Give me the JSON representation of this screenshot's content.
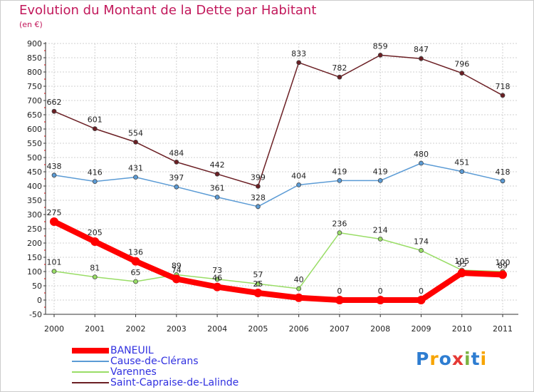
{
  "header": {
    "title": "Evolution du Montant de la Dette par Habitant",
    "unit": "(en €)"
  },
  "colors": {
    "title": "#c2185b",
    "legend_text": "#3030e0",
    "grid": "#d0d0d0",
    "axis": "#333333"
  },
  "chart_data": {
    "type": "line",
    "title": "Evolution du Montant de la Dette par Habitant",
    "subtitle": "(en €)",
    "x": [
      "2000",
      "2001",
      "2002",
      "2003",
      "2004",
      "2005",
      "2006",
      "2007",
      "2008",
      "2009",
      "2010",
      "2011"
    ],
    "ylim": [
      -50,
      900
    ],
    "yticks": [
      -50,
      0,
      50,
      100,
      150,
      200,
      250,
      300,
      350,
      400,
      450,
      500,
      550,
      600,
      650,
      700,
      750,
      800,
      850,
      900
    ],
    "grid": true,
    "legend_position": "bottom-left",
    "series": [
      {
        "name": "Saint-Capraise-de-Lalinde",
        "color": "#6b1f24",
        "values": [
          662,
          601,
          554,
          484,
          442,
          399,
          833,
          782,
          859,
          847,
          796,
          718
        ],
        "labels": [
          "662",
          "601",
          "554",
          "484",
          "442",
          "399",
          "833",
          "782",
          "859",
          "847",
          "796",
          "718"
        ]
      },
      {
        "name": "Cause-de-Clérans",
        "color": "#5b9bd5",
        "values": [
          438,
          416,
          431,
          397,
          361,
          328,
          404,
          419,
          419,
          480,
          451,
          418
        ],
        "labels": [
          "438",
          "416",
          "431",
          "397",
          "361",
          "328",
          "404",
          "419",
          "419",
          "480",
          "451",
          "418"
        ]
      },
      {
        "name": "Varennes",
        "color": "#99dd66",
        "values": [
          101,
          81,
          65,
          89,
          73,
          57,
          40,
          236,
          214,
          174,
          105,
          100
        ],
        "labels": [
          "101",
          "81",
          "65",
          "89",
          "73",
          "57",
          "40",
          "236",
          "214",
          "174",
          "105",
          "100"
        ]
      },
      {
        "name": "BANEUIL",
        "color": "#ff0000",
        "values": [
          275,
          205,
          136,
          74,
          46,
          25,
          8,
          0,
          0,
          0,
          95,
          89
        ],
        "labels": [
          "275",
          "205",
          "136",
          "74",
          "46",
          "25",
          "",
          "0",
          "0",
          "0",
          "95",
          "89"
        ]
      }
    ]
  },
  "legend": {
    "items": [
      {
        "name": "BANEUIL",
        "color": "#ff0000",
        "stroke": 8
      },
      {
        "name": "Cause-de-Clérans",
        "color": "#5b9bd5",
        "stroke": 2
      },
      {
        "name": "Varennes",
        "color": "#99dd66",
        "stroke": 2
      },
      {
        "name": "Saint-Capraise-de-Lalinde",
        "color": "#6b1f24",
        "stroke": 2
      }
    ]
  },
  "logo": {
    "letters": [
      {
        "char": "P",
        "color": "#2e7dd1"
      },
      {
        "char": "r",
        "color": "#f7a400"
      },
      {
        "char": "o",
        "color": "#2e7dd1"
      },
      {
        "char": "x",
        "color": "#e53935"
      },
      {
        "char": "i",
        "color": "#7cb342"
      },
      {
        "char": "t",
        "color": "#2e7dd1"
      },
      {
        "char": "i",
        "color": "#f7a400"
      }
    ]
  }
}
